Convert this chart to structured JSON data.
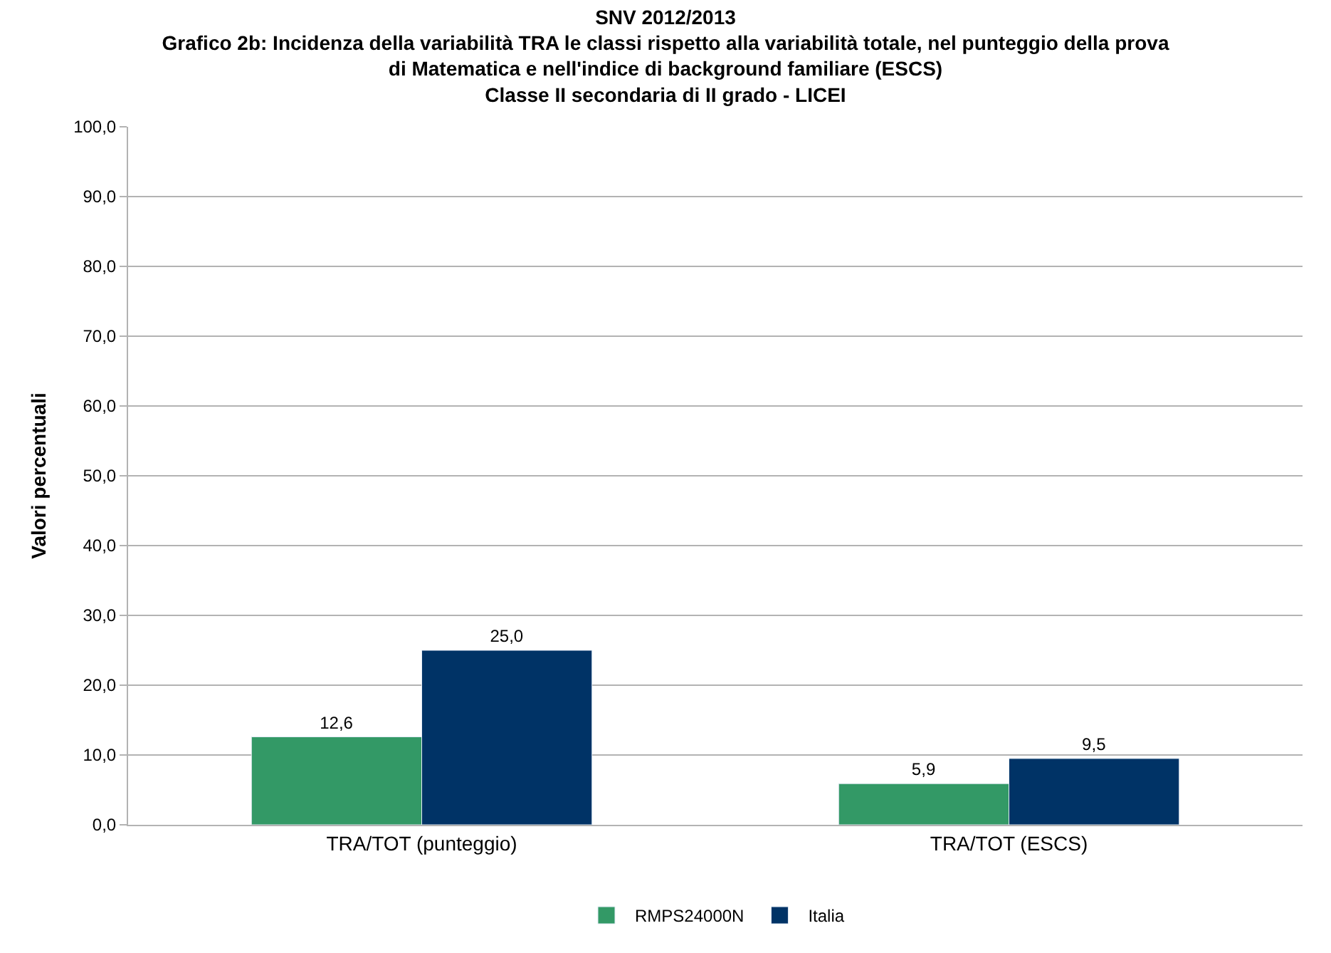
{
  "chart_data": {
    "type": "bar",
    "title": "SNV 2012/2013\nGrafico 2b: Incidenza della variabilità TRA le classi rispetto alla variabilità totale, nel punteggio della prova\ndi Matematica e nell'indice di background familiare (ESCS)\nClasse II secondaria di II grado - LICEI",
    "ylabel": "Valori percentuali",
    "categories": [
      "TRA/TOT (punteggio)",
      "TRA/TOT (ESCS)"
    ],
    "series": [
      {
        "name": "RMPS24000N",
        "color": "#339966",
        "values": [
          12.6,
          5.9
        ],
        "value_labels": [
          "12,6",
          "5,9"
        ]
      },
      {
        "name": "Italia",
        "color": "#003366",
        "values": [
          25.0,
          9.5
        ],
        "value_labels": [
          "25,0",
          "9,5"
        ]
      }
    ],
    "ylim": [
      0,
      100
    ],
    "yticks": [
      {
        "value": 0,
        "label": "0,0"
      },
      {
        "value": 10,
        "label": "10,0"
      },
      {
        "value": 20,
        "label": "20,0"
      },
      {
        "value": 30,
        "label": "30,0"
      },
      {
        "value": 40,
        "label": "40,0"
      },
      {
        "value": 50,
        "label": "50,0"
      },
      {
        "value": 60,
        "label": "60,0"
      },
      {
        "value": 70,
        "label": "70,0"
      },
      {
        "value": 80,
        "label": "80,0"
      },
      {
        "value": 90,
        "label": "90,0"
      },
      {
        "value": 100,
        "label": "100,0"
      }
    ],
    "grid": "y",
    "legend": "bottom"
  }
}
